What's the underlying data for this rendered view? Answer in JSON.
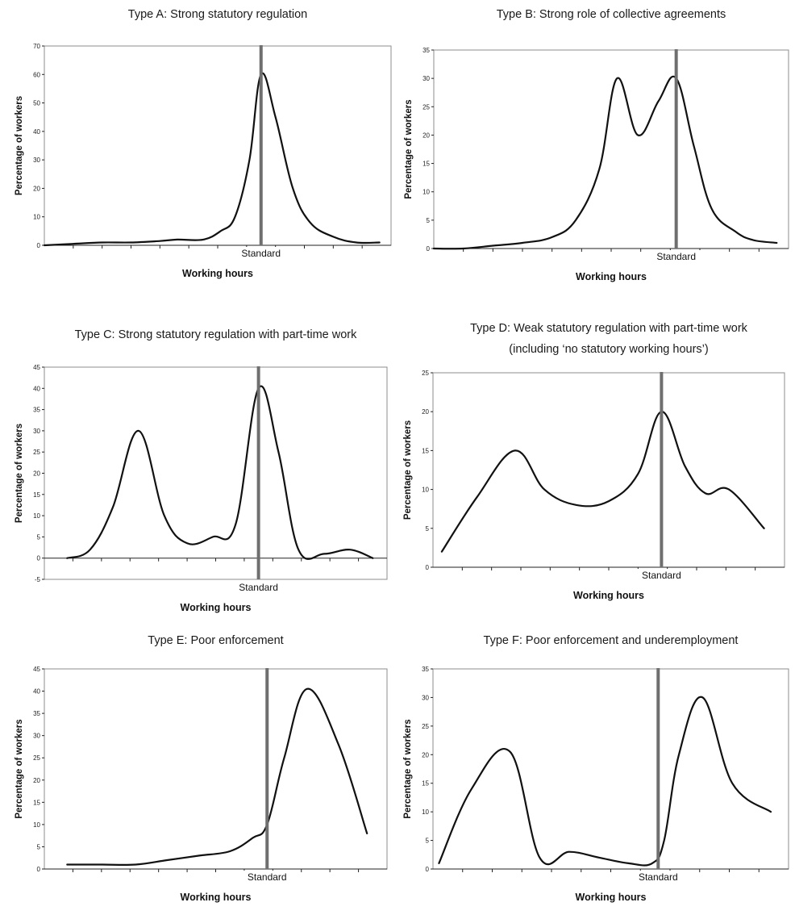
{
  "colors": {
    "curve": "#111111",
    "standard_line": "#6f6f6f",
    "frame": "#8c8c8c"
  },
  "chart_data": [
    {
      "type": "line",
      "title": "Type A: Strong statutory regulation",
      "title2": "",
      "xlabel": "Working hours",
      "ylabel": "Percentage of workers",
      "standard_label": "Standard",
      "ylim": [
        0,
        70
      ],
      "yticks": [
        0,
        10,
        20,
        30,
        40,
        50,
        60,
        70
      ],
      "xlim": [
        0,
        12
      ],
      "standard_x": 7.5,
      "grid": false,
      "x": [
        0,
        1,
        2,
        3,
        4,
        4.6,
        5.5,
        6.1,
        6.6,
        7.1,
        7.5,
        8,
        8.6,
        9.2,
        10,
        10.8,
        11.6
      ],
      "y": [
        0,
        0.5,
        1,
        1,
        1.5,
        2,
        2,
        5,
        10,
        30,
        60,
        45,
        20,
        8,
        3,
        1,
        1
      ]
    },
    {
      "type": "line",
      "title": "Type B: Strong role of collective agreements",
      "title2": "",
      "xlabel": "Working hours",
      "ylabel": "Percentage of workers",
      "standard_label": "Standard",
      "ylim": [
        0,
        35
      ],
      "yticks": [
        0,
        5,
        10,
        15,
        20,
        25,
        30,
        35
      ],
      "xlim": [
        0,
        12
      ],
      "standard_x": 8.2,
      "grid": false,
      "x": [
        0,
        1,
        2,
        3,
        4,
        4.8,
        5.6,
        6.2,
        6.9,
        7.6,
        8.2,
        8.8,
        9.4,
        10.2,
        10.8,
        11.6
      ],
      "y": [
        0,
        0,
        0.5,
        1,
        2,
        5,
        14,
        30,
        20,
        26,
        30,
        18,
        7,
        3,
        1.5,
        1
      ]
    },
    {
      "type": "line",
      "title": "Type C: Strong statutory regulation with part-time work",
      "title2": "",
      "xlabel": "Working hours",
      "ylabel": "Percentage of workers",
      "standard_label": "Standard",
      "ylim": [
        -5,
        45
      ],
      "yticks": [
        -5,
        0,
        5,
        10,
        15,
        20,
        25,
        30,
        35,
        40,
        45
      ],
      "xlim": [
        0,
        12
      ],
      "standard_x": 7.5,
      "grid": false,
      "x": [
        0.8,
        1.6,
        2.4,
        3.3,
        4.2,
        5,
        5.9,
        6.7,
        7.5,
        8.2,
        8.9,
        9.8,
        10.7,
        11.5
      ],
      "y": [
        0,
        2,
        12,
        30,
        10,
        3.5,
        5,
        8,
        40,
        25,
        2,
        1,
        2,
        0
      ]
    },
    {
      "type": "line",
      "title": "Type D: Weak statutory regulation with part-time work",
      "title2": "(including ‘no statutory working hours’)",
      "xlabel": "Working hours",
      "ylabel": "Percentage of workers",
      "standard_label": "Standard",
      "ylim": [
        0,
        25
      ],
      "yticks": [
        0,
        5,
        10,
        15,
        20,
        25
      ],
      "xlim": [
        0,
        12
      ],
      "standard_x": 7.8,
      "grid": false,
      "x": [
        0.3,
        1.5,
        2.8,
        3.8,
        4.9,
        6,
        7,
        7.8,
        8.6,
        9.3,
        10.1,
        11.3
      ],
      "y": [
        2,
        9,
        15,
        10,
        8,
        8.5,
        12,
        20,
        13,
        9.5,
        10,
        5
      ]
    },
    {
      "type": "line",
      "title": "Type E: Poor enforcement",
      "title2": "",
      "xlabel": "Working hours",
      "ylabel": "Percentage of workers",
      "standard_label": "Standard",
      "ylim": [
        0,
        45
      ],
      "yticks": [
        0,
        5,
        10,
        15,
        20,
        25,
        30,
        35,
        40,
        45
      ],
      "xlim": [
        0,
        12
      ],
      "standard_x": 7.8,
      "grid": false,
      "x": [
        0.8,
        2,
        3.2,
        4.3,
        5.4,
        6.5,
        7.3,
        7.8,
        8.4,
        9.2,
        10.3,
        11.3
      ],
      "y": [
        1,
        1,
        1,
        2,
        3,
        4,
        7,
        10,
        25,
        40.5,
        28,
        8
      ]
    },
    {
      "type": "line",
      "title": "Type F: Poor enforcement and underemployment",
      "title2": "",
      "xlabel": "Working hours",
      "ylabel": "Percentage of workers",
      "standard_label": "Standard",
      "ylim": [
        0,
        35
      ],
      "yticks": [
        0,
        5,
        10,
        15,
        20,
        25,
        30,
        35
      ],
      "xlim": [
        0,
        12
      ],
      "standard_x": 7.6,
      "grid": false,
      "x": [
        0.2,
        1.3,
        2.6,
        3.6,
        4.6,
        5.6,
        6.6,
        7.4,
        7.8,
        8.3,
        9.1,
        10.1,
        11.4
      ],
      "y": [
        1,
        14,
        20.5,
        2,
        3,
        2,
        1,
        1,
        5,
        20,
        30,
        15,
        10
      ]
    }
  ]
}
